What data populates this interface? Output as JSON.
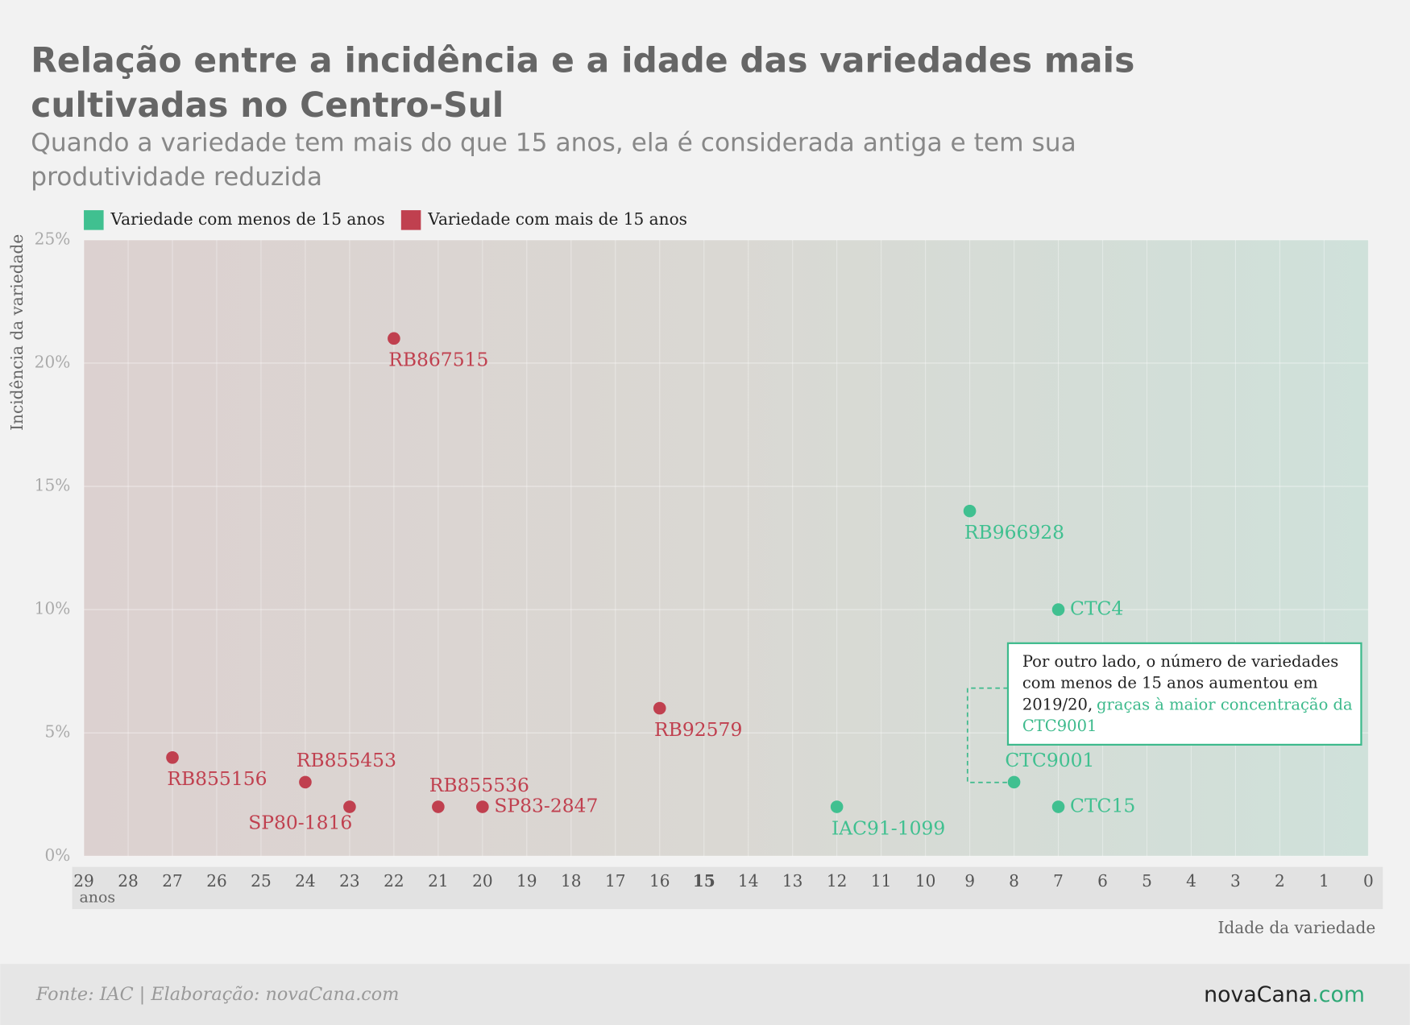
{
  "chart_data": {
    "type": "scatter",
    "title": "Relação entre a incidência e a idade das variedades mais cultivadas no Centro-Sul",
    "subtitle": "Quando a variedade tem mais do que 15 anos, ela é considerada antiga e tem sua produtividade reduzida",
    "x_label": "Idade da variedade",
    "x_unit": "anos",
    "y_label": "Incidência da variedade",
    "xlim": [
      29,
      0
    ],
    "xticks": [
      29,
      28,
      27,
      26,
      25,
      24,
      23,
      22,
      21,
      20,
      19,
      18,
      17,
      16,
      15,
      14,
      13,
      12,
      11,
      10,
      9,
      8,
      7,
      6,
      5,
      4,
      3,
      2,
      1,
      0
    ],
    "highlight_xtick": 15,
    "ylim": [
      0,
      25
    ],
    "yticks": [
      {
        "value": 0,
        "label": "0%"
      },
      {
        "value": 5,
        "label": "5%"
      },
      {
        "value": 10,
        "label": "10%"
      },
      {
        "value": 15,
        "label": "15%"
      },
      {
        "value": 20,
        "label": "20%"
      },
      {
        "value": 25,
        "label": "25%"
      }
    ],
    "grid": true,
    "series": [
      {
        "name": "Variedade com menos de 15 anos",
        "color": "#40c090",
        "labels": [
          "RB966928",
          "CTC4",
          "CTC9001",
          "CTC15",
          "IAC91-1099"
        ],
        "x": [
          9,
          7,
          8,
          7,
          12
        ],
        "values": [
          14,
          10,
          3,
          2,
          2
        ]
      },
      {
        "name": "Variedade com mais de 15 anos",
        "color": "#c0404f",
        "labels": [
          "RB867515",
          "RB855156",
          "RB855453",
          "SP80-1816",
          "RB855536",
          "SP83-2847",
          "RB92579"
        ],
        "x": [
          22,
          27,
          24,
          23,
          21,
          20,
          16
        ],
        "values": [
          21,
          4,
          3,
          2,
          2,
          2,
          6
        ]
      }
    ],
    "annotation": {
      "text": "Por outro lado, o número de variedades com menos de 15 anos aumentou em 2019/20,",
      "highlight": "graças à maior concentração da CTC9001"
    },
    "source": "Fonte: IAC | Elaboração: novaCana.com",
    "logo": [
      "novaCana",
      ".com"
    ]
  }
}
